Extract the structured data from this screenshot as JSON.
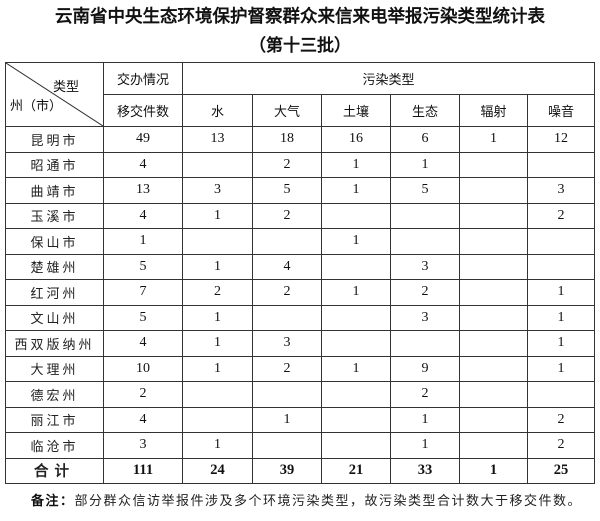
{
  "title": "云南省中央生态环境保护督察群众来信来电举报污染类型统计表",
  "subtitle": "（第十三批）",
  "header": {
    "corner_top": "类型",
    "corner_bottom": "州（市）",
    "group_assigned": "交办情况",
    "group_pollution": "污染类型",
    "columns": [
      "移交件数",
      "水",
      "大气",
      "土壤",
      "生态",
      "辐射",
      "噪音"
    ]
  },
  "rows": [
    {
      "name": "昆明市",
      "values": [
        "49",
        "13",
        "18",
        "16",
        "6",
        "1",
        "12"
      ]
    },
    {
      "name": "昭通市",
      "values": [
        "4",
        "",
        "2",
        "1",
        "1",
        "",
        ""
      ]
    },
    {
      "name": "曲靖市",
      "values": [
        "13",
        "3",
        "5",
        "1",
        "5",
        "",
        "3"
      ]
    },
    {
      "name": "玉溪市",
      "values": [
        "4",
        "1",
        "2",
        "",
        "",
        "",
        "2"
      ]
    },
    {
      "name": "保山市",
      "values": [
        "1",
        "",
        "",
        "1",
        "",
        "",
        ""
      ]
    },
    {
      "name": "楚雄州",
      "values": [
        "5",
        "1",
        "4",
        "",
        "3",
        "",
        ""
      ]
    },
    {
      "name": "红河州",
      "values": [
        "7",
        "2",
        "2",
        "1",
        "2",
        "",
        "1"
      ]
    },
    {
      "name": "文山州",
      "values": [
        "5",
        "1",
        "",
        "",
        "3",
        "",
        "1"
      ]
    },
    {
      "name": "西双版纳州",
      "values": [
        "4",
        "1",
        "3",
        "",
        "",
        "",
        "1"
      ]
    },
    {
      "name": "大理州",
      "values": [
        "10",
        "1",
        "2",
        "1",
        "9",
        "",
        "1"
      ]
    },
    {
      "name": "德宏州",
      "values": [
        "2",
        "",
        "",
        "",
        "2",
        "",
        ""
      ]
    },
    {
      "name": "丽江市",
      "values": [
        "4",
        "",
        "1",
        "",
        "1",
        "",
        "2"
      ]
    },
    {
      "name": "临沧市",
      "values": [
        "3",
        "1",
        "",
        "",
        "1",
        "",
        "2"
      ]
    }
  ],
  "total": {
    "name": "合计",
    "values": [
      "111",
      "24",
      "39",
      "21",
      "33",
      "1",
      "25"
    ]
  },
  "note": {
    "label": "备注：",
    "text": "部分群众信访举报件涉及多个环境污染类型，故污染类型合计数大于移交件数。"
  }
}
